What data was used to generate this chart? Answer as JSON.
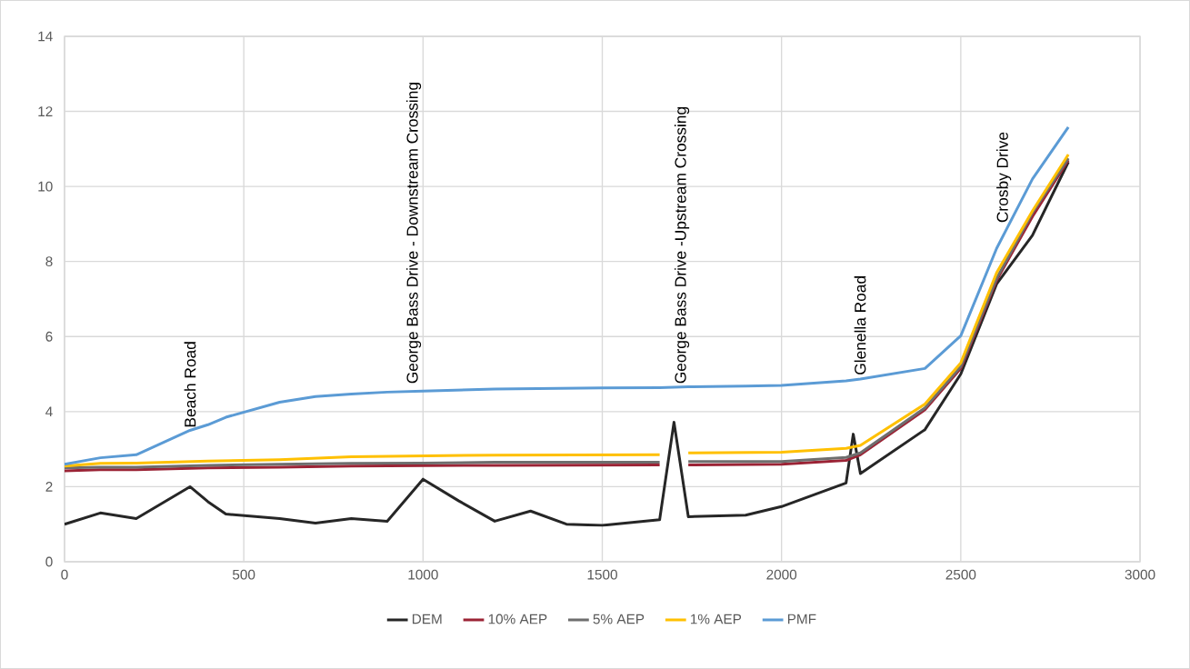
{
  "chart_data": {
    "type": "line",
    "xlim": [
      0,
      3000
    ],
    "xticks": [
      0,
      500,
      1000,
      1500,
      2000,
      2500,
      3000
    ],
    "ylim": [
      0,
      14
    ],
    "yticks": [
      0,
      2,
      4,
      6,
      8,
      10,
      12,
      14
    ],
    "grid": true,
    "legend": "bottom",
    "marker": "none",
    "line_style": "solid",
    "series": [
      {
        "name": "DEM",
        "color": "#262626",
        "x": [
          0,
          100,
          200,
          350,
          400,
          450,
          600,
          700,
          800,
          900,
          1000,
          1100,
          1200,
          1300,
          1400,
          1500,
          1660,
          1700,
          1740,
          1900,
          2000,
          2180,
          2200,
          2220,
          2400,
          2500,
          2600,
          2700,
          2800
        ],
        "values": [
          1.0,
          1.3,
          1.15,
          2.0,
          1.6,
          1.27,
          1.15,
          1.03,
          1.15,
          1.08,
          2.2,
          1.62,
          1.08,
          1.35,
          1.0,
          0.97,
          1.12,
          3.72,
          1.2,
          1.24,
          1.47,
          2.1,
          3.4,
          2.35,
          3.52,
          5.0,
          7.4,
          8.7,
          10.65
        ]
      },
      {
        "name": "10% AEP",
        "color": "#9b2335",
        "x": [
          0,
          100,
          200,
          400,
          600,
          800,
          1000,
          1200,
          1660,
          1700,
          1740,
          2000,
          2180,
          2220,
          2400,
          2500,
          2600,
          2700,
          2800
        ],
        "values": [
          2.42,
          2.45,
          2.45,
          2.5,
          2.52,
          2.55,
          2.56,
          2.57,
          2.58,
          null,
          2.58,
          2.6,
          2.7,
          2.85,
          4.05,
          5.15,
          7.5,
          9.2,
          10.7
        ]
      },
      {
        "name": "5% AEP",
        "color": "#6e6e6e",
        "x": [
          0,
          100,
          200,
          400,
          600,
          800,
          1000,
          1200,
          1660,
          1700,
          1740,
          2000,
          2180,
          2220,
          2400,
          2500,
          2600,
          2700,
          2800
        ],
        "values": [
          2.5,
          2.52,
          2.52,
          2.57,
          2.6,
          2.62,
          2.63,
          2.65,
          2.65,
          null,
          2.67,
          2.67,
          2.78,
          2.9,
          4.1,
          5.2,
          7.55,
          9.3,
          10.75
        ]
      },
      {
        "name": "1% AEP",
        "color": "#ffc000",
        "x": [
          0,
          100,
          200,
          400,
          600,
          800,
          1000,
          1200,
          1660,
          1700,
          1740,
          2000,
          2180,
          2220,
          2400,
          2500,
          2600,
          2700,
          2800
        ],
        "values": [
          2.55,
          2.62,
          2.63,
          2.68,
          2.72,
          2.8,
          2.82,
          2.84,
          2.85,
          null,
          2.9,
          2.92,
          3.02,
          3.1,
          4.2,
          5.3,
          7.7,
          9.35,
          10.85
        ]
      },
      {
        "name": "PMF",
        "color": "#5b9bd5",
        "x": [
          0,
          100,
          200,
          350,
          400,
          450,
          600,
          700,
          800,
          900,
          1000,
          1200,
          1500,
          1660,
          1740,
          1900,
          2000,
          2180,
          2220,
          2400,
          2500,
          2600,
          2700,
          2800
        ],
        "values": [
          2.6,
          2.77,
          2.85,
          3.5,
          3.65,
          3.85,
          4.25,
          4.4,
          4.47,
          4.52,
          4.55,
          4.6,
          4.63,
          4.64,
          4.66,
          4.68,
          4.7,
          4.82,
          4.87,
          5.15,
          6.02,
          8.35,
          10.2,
          11.58
        ]
      }
    ],
    "annotations": [
      {
        "text": "Beach Road",
        "x": 350,
        "y": 3.5
      },
      {
        "text": "George Bass Drive - Downstream Crossing",
        "x": 974,
        "y": 4.67
      },
      {
        "text": "George Bass Drive -Upstream Crossing",
        "x": 1722,
        "y": 4.67
      },
      {
        "text": "Glenella Road",
        "x": 2219,
        "y": 4.9
      },
      {
        "text": "Crosby Drive",
        "x": 2620,
        "y": 8.96
      }
    ]
  }
}
